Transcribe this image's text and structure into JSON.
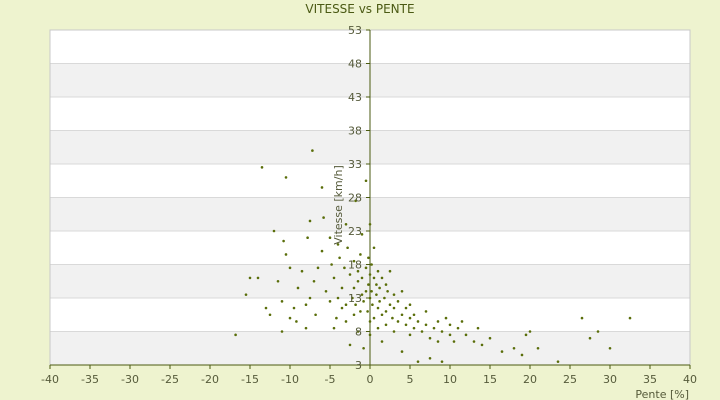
{
  "chart_data": {
    "type": "scatter",
    "title": "VITESSE vs PENTE",
    "xlabel": "Pente [%]",
    "ylabel": "Vitesse [km/h]",
    "xlim": [
      -40,
      40
    ],
    "ylim": [
      3,
      53
    ],
    "x_ticks": [
      -40,
      -35,
      -30,
      -25,
      -20,
      -15,
      -10,
      -5,
      0,
      5,
      10,
      15,
      20,
      25,
      30,
      35,
      40
    ],
    "y_ticks": [
      3,
      8,
      13,
      18,
      23,
      28,
      33,
      38,
      43,
      48,
      53
    ],
    "grid": true,
    "legend": "none",
    "colors": {
      "background": "#eef3cf",
      "plot_bg": "#ffffff",
      "band": "#f1f1f1",
      "point": "#5a6e0a",
      "axis": "#4a5a10"
    },
    "series": [
      {
        "values": [
          [
            -16.8,
            7.5
          ],
          [
            -15.5,
            13.5
          ],
          [
            -15,
            16
          ],
          [
            -14,
            16
          ],
          [
            -13.5,
            32.5
          ],
          [
            -13,
            11.5
          ],
          [
            -12.5,
            10.5
          ],
          [
            -12,
            23
          ],
          [
            -11.5,
            15.5
          ],
          [
            -11,
            8
          ],
          [
            -11,
            12.5
          ],
          [
            -10.8,
            21.5
          ],
          [
            -10.5,
            31
          ],
          [
            -10.5,
            19.5
          ],
          [
            -10,
            10
          ],
          [
            -10,
            17.5
          ],
          [
            -9.5,
            11.5
          ],
          [
            -9.2,
            9.5
          ],
          [
            -9,
            14.5
          ],
          [
            -8.5,
            17
          ],
          [
            -8,
            8.5
          ],
          [
            -8,
            12
          ],
          [
            -7.8,
            22
          ],
          [
            -7.5,
            13
          ],
          [
            -7.5,
            24.5
          ],
          [
            -7.2,
            35
          ],
          [
            -7,
            15.5
          ],
          [
            -6.8,
            10.5
          ],
          [
            -6.5,
            17.5
          ],
          [
            -6,
            29.5
          ],
          [
            -6,
            20
          ],
          [
            -5.8,
            25
          ],
          [
            -5.5,
            14
          ],
          [
            -5,
            12.5
          ],
          [
            -5,
            22
          ],
          [
            -4.8,
            18
          ],
          [
            -4.5,
            8.5
          ],
          [
            -4.5,
            16
          ],
          [
            -4.2,
            10
          ],
          [
            -4,
            13
          ],
          [
            -4,
            21
          ],
          [
            -3.8,
            19
          ],
          [
            -3.5,
            11.5
          ],
          [
            -3.5,
            14.5
          ],
          [
            -3.2,
            17.5
          ],
          [
            -3,
            12
          ],
          [
            -3,
            24
          ],
          [
            -3,
            9.5
          ],
          [
            -2.8,
            20.5
          ],
          [
            -2.5,
            16.5
          ],
          [
            -2.5,
            6
          ],
          [
            -2.2,
            13
          ],
          [
            -2,
            10.5
          ],
          [
            -2,
            18.5
          ],
          [
            -2,
            14.5
          ],
          [
            -1.8,
            12
          ],
          [
            -1.8,
            27.5
          ],
          [
            -1.5,
            15.5
          ],
          [
            -1.5,
            17
          ],
          [
            -1.5,
            8
          ],
          [
            -1.2,
            11
          ],
          [
            -1.2,
            19.5
          ],
          [
            -1,
            13.5
          ],
          [
            -1,
            16
          ],
          [
            -1,
            22.5
          ],
          [
            -0.8,
            12.5
          ],
          [
            -0.8,
            5.5
          ],
          [
            -0.5,
            14
          ],
          [
            -0.5,
            17.5
          ],
          [
            -0.5,
            30.5
          ],
          [
            -0.3,
            11
          ],
          [
            -0.2,
            15
          ],
          [
            -0.2,
            19
          ],
          [
            0,
            16.5
          ],
          [
            0,
            13
          ],
          [
            0,
            9.5
          ],
          [
            0,
            24
          ],
          [
            0,
            7.5
          ],
          [
            0.2,
            18
          ],
          [
            0.2,
            14
          ],
          [
            0.3,
            12
          ],
          [
            0.5,
            16
          ],
          [
            0.5,
            10
          ],
          [
            0.5,
            20.5
          ],
          [
            0.8,
            13.5
          ],
          [
            0.8,
            15
          ],
          [
            1,
            17
          ],
          [
            1,
            11.5
          ],
          [
            1,
            8.5
          ],
          [
            1.2,
            14.5
          ],
          [
            1.2,
            12.5
          ],
          [
            1.5,
            16
          ],
          [
            1.5,
            10.5
          ],
          [
            1.5,
            6.5
          ],
          [
            1.8,
            13
          ],
          [
            2,
            15
          ],
          [
            2,
            11
          ],
          [
            2,
            9
          ],
          [
            2.2,
            14
          ],
          [
            2.5,
            12
          ],
          [
            2.5,
            17
          ],
          [
            2.8,
            10
          ],
          [
            3,
            13.5
          ],
          [
            3,
            8
          ],
          [
            3,
            11.5
          ],
          [
            3.5,
            9.5
          ],
          [
            3.5,
            12.5
          ],
          [
            4,
            10.5
          ],
          [
            4,
            14
          ],
          [
            4,
            5
          ],
          [
            4.5,
            9
          ],
          [
            4.5,
            11.5
          ],
          [
            5,
            10
          ],
          [
            5,
            7.5
          ],
          [
            5,
            12
          ],
          [
            5.5,
            8.5
          ],
          [
            5.5,
            10.5
          ],
          [
            6,
            9.5
          ],
          [
            6,
            3.5
          ],
          [
            6.5,
            8
          ],
          [
            7,
            9
          ],
          [
            7,
            11
          ],
          [
            7.5,
            7
          ],
          [
            7.5,
            4
          ],
          [
            8,
            8.5
          ],
          [
            8.5,
            6.5
          ],
          [
            8.5,
            9.5
          ],
          [
            9,
            8
          ],
          [
            9,
            3.5
          ],
          [
            9.5,
            10
          ],
          [
            10,
            7.5
          ],
          [
            10,
            9
          ],
          [
            10.5,
            6.5
          ],
          [
            11,
            8.5
          ],
          [
            11.5,
            9.5
          ],
          [
            12,
            7.5
          ],
          [
            13,
            6.5
          ],
          [
            13.5,
            8.5
          ],
          [
            14,
            6
          ],
          [
            15,
            7
          ],
          [
            16.5,
            5
          ],
          [
            18,
            5.5
          ],
          [
            19,
            4.5
          ],
          [
            19.5,
            7.5
          ],
          [
            20,
            8
          ],
          [
            21,
            5.5
          ],
          [
            23.5,
            3.5
          ],
          [
            26.5,
            10
          ],
          [
            27.5,
            7
          ],
          [
            28.5,
            8
          ],
          [
            30,
            5.5
          ],
          [
            32.5,
            10
          ]
        ]
      }
    ]
  }
}
